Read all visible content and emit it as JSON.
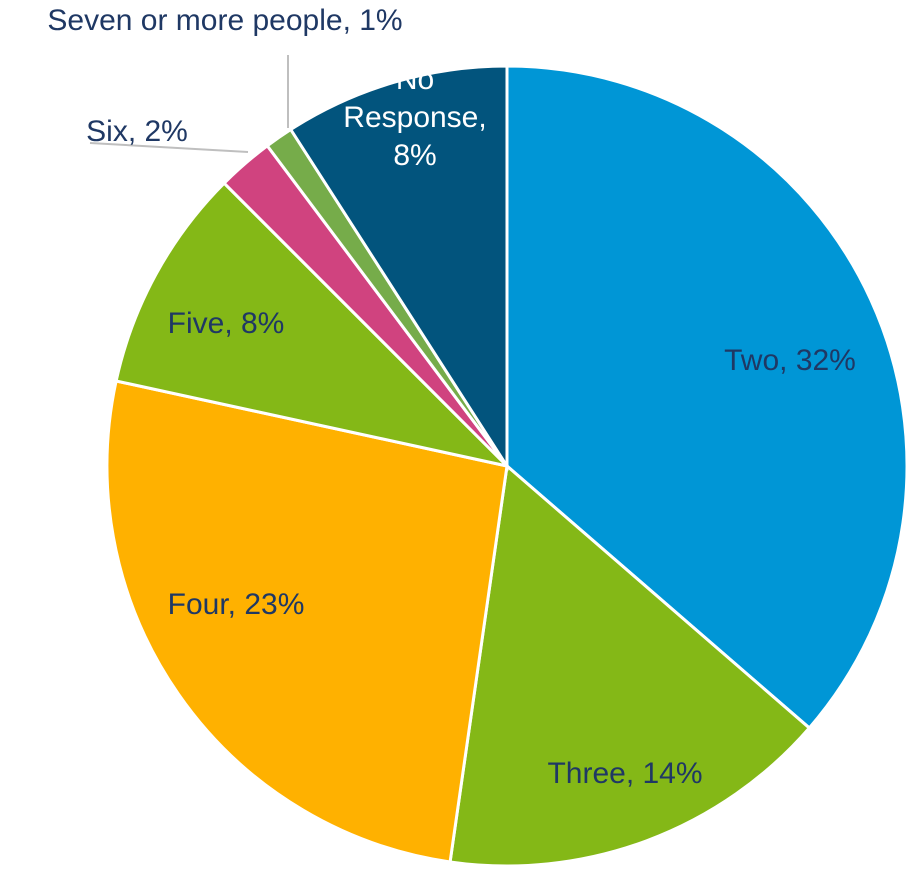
{
  "chart_data": {
    "type": "pie",
    "title": "",
    "start_angle_deg": 0,
    "direction": "clockwise",
    "legend": "none",
    "slices": [
      {
        "label": "Two, 32%",
        "category": "Two",
        "value": 32,
        "color": "#0096D6",
        "label_color": "#1F3864",
        "label_lines": [
          "Two, 32%"
        ]
      },
      {
        "label": "Three, 14%",
        "category": "Three",
        "value": 14,
        "color": "#84B817",
        "label_color": "#1F3864",
        "label_lines": [
          "Three, 14%"
        ]
      },
      {
        "label": "Four, 23%",
        "category": "Four",
        "value": 23,
        "color": "#FFB100",
        "label_color": "#1F3864",
        "label_lines": [
          "Four, 23%"
        ]
      },
      {
        "label": "Five, 8%",
        "category": "Five",
        "value": 8,
        "color": "#84B817",
        "label_color": "#1F3864",
        "label_lines": [
          "Five, 8%"
        ]
      },
      {
        "label": "Six, 2%",
        "category": "Six",
        "value": 2,
        "color": "#D0437F",
        "label_color": "#1F3864",
        "label_lines": [
          "Six, 2%"
        ]
      },
      {
        "label": "Seven or more people, 1%",
        "category": "Seven or more people",
        "value": 1,
        "color": "#76AC4A",
        "label_color": "#1F3864",
        "label_lines": [
          "Seven or more people, 1%"
        ]
      },
      {
        "label": "No Response, 8%",
        "category": "No Response",
        "value": 8,
        "color": "#02547D",
        "label_color": "#FFFFFF",
        "label_lines": [
          "No",
          "Response,",
          "8%"
        ]
      }
    ]
  }
}
